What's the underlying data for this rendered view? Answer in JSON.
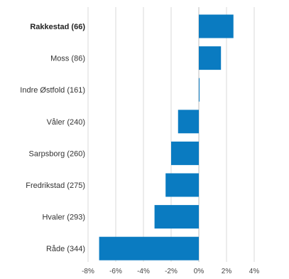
{
  "chart_data": {
    "type": "bar",
    "orientation": "horizontal",
    "categories": [
      "Rakkestad (66)",
      "Moss (86)",
      "Indre Østfold (161)",
      "Våler (240)",
      "Sarpsborg (260)",
      "Fredrikstad (275)",
      "Hvaler (293)",
      "Råde (344)"
    ],
    "highlighted_category": "Rakkestad (66)",
    "values": [
      2.5,
      1.6,
      0.0,
      -1.5,
      -2.0,
      -2.4,
      -3.2,
      -7.2
    ],
    "xlim": [
      -8,
      4
    ],
    "xticks": [
      -8,
      -6,
      -4,
      -2,
      0,
      2,
      4
    ],
    "xtick_labels": [
      "-8%",
      "-6%",
      "-4%",
      "-2%",
      "0%",
      "2%",
      "4%"
    ],
    "grid": true,
    "bar_color": "#0a7bc1",
    "grid_color": "#d9d9d9"
  }
}
